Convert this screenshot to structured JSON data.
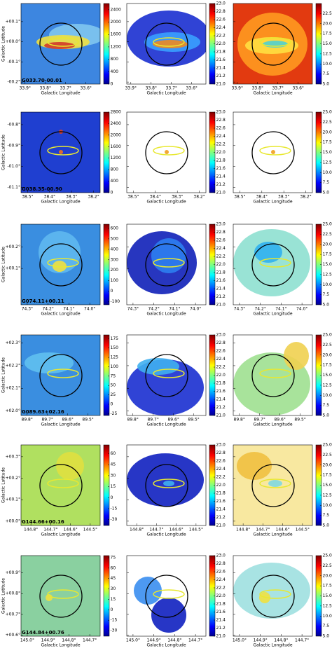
{
  "xlabel": "Galactic Longitude",
  "ylabel": "Galactic Latitude",
  "rows": [
    {
      "label": "G033.70-00.01",
      "xlim": [
        33.92,
        33.53
      ],
      "ylim": [
        -0.21,
        0.19
      ],
      "xticks": [
        {
          "value": 33.9,
          "label": "33.9°"
        },
        {
          "value": 33.8,
          "label": "33.8°"
        },
        {
          "value": 33.7,
          "label": "33.7°"
        },
        {
          "value": 33.6,
          "label": "33.6°"
        }
      ],
      "yticks": [
        {
          "value": 0.1,
          "label": "+00.1°"
        },
        {
          "value": 0.0,
          "label": "+00.0°"
        },
        {
          "value": -0.1,
          "label": "-00.1°"
        },
        {
          "value": -0.2,
          "label": "-00.2°"
        }
      ],
      "colorbars": [
        {
          "lim": [
            0,
            2600
          ],
          "ticks": [
            0,
            400,
            800,
            1200,
            1600,
            2000,
            2400
          ]
        },
        {
          "lim": [
            21.0,
            23.0
          ],
          "ticks": [
            {
              "value": 21.0,
              "label": "21.0"
            },
            21.2,
            21.4,
            21.6,
            21.8,
            {
              "value": 22.0,
              "label": "22.0"
            },
            22.2,
            22.4,
            22.6,
            22.8,
            {
              "value": 23.0,
              "label": "23.0"
            }
          ]
        },
        {
          "lim": [
            5.0,
            25.0
          ],
          "ticks": [
            {
              "value": 5.0,
              "label": "5.0"
            },
            {
              "value": 7.5,
              "label": "7.5"
            },
            {
              "value": 10.0,
              "label": "10.0"
            },
            {
              "value": 12.5,
              "label": "12.5"
            },
            {
              "value": 15.0,
              "label": "15.0"
            },
            {
              "value": 17.5,
              "label": "17.5"
            },
            {
              "value": 20.0,
              "label": "20.0"
            },
            {
              "value": 22.5,
              "label": "22.5"
            }
          ]
        }
      ]
    },
    {
      "label": "G038.35-00.90",
      "xlim": [
        38.53,
        38.17
      ],
      "ylim": [
        -1.125,
        -0.74
      ],
      "xticks": [
        {
          "value": 38.5,
          "label": "38.5°"
        },
        {
          "value": 38.4,
          "label": "38.4°"
        },
        {
          "value": 38.3,
          "label": "38.3°"
        },
        {
          "value": 38.2,
          "label": "38.2°"
        }
      ],
      "yticks": [
        {
          "value": -0.8,
          "label": "-00.8°"
        },
        {
          "value": -0.9,
          "label": "-00.9°"
        },
        {
          "value": -1.0,
          "label": "-01.0°"
        },
        {
          "value": -1.1,
          "label": "-01.1°"
        }
      ],
      "colorbars": [
        {
          "lim": [
            0,
            2800
          ],
          "ticks": [
            0,
            400,
            800,
            1200,
            1600,
            2000,
            2400,
            2800
          ]
        },
        {
          "lim": [
            21.0,
            23.0
          ],
          "ticks": [
            {
              "value": 21.0,
              "label": "21.0"
            },
            21.2,
            21.4,
            21.6,
            21.8,
            {
              "value": 22.0,
              "label": "22.0"
            },
            22.2,
            22.4,
            22.6,
            22.8,
            {
              "value": 23.0,
              "label": "23.0"
            }
          ]
        },
        {
          "lim": [
            5.0,
            25.0
          ],
          "ticks": [
            {
              "value": 5.0,
              "label": "5.0"
            },
            {
              "value": 7.5,
              "label": "7.5"
            },
            {
              "value": 10.0,
              "label": "10.0"
            },
            {
              "value": 12.5,
              "label": "12.5"
            },
            {
              "value": 15.0,
              "label": "15.0"
            },
            {
              "value": 17.5,
              "label": "17.5"
            },
            {
              "value": 20.0,
              "label": "20.0"
            },
            {
              "value": 22.5,
              "label": "22.5"
            },
            {
              "value": 25.0,
              "label": "25.0"
            }
          ]
        }
      ]
    },
    {
      "label": "G074.11+00.11",
      "xlim": [
        74.33,
        73.95
      ],
      "ylim": [
        -0.07,
        0.307
      ],
      "xticks": [
        {
          "value": 74.3,
          "label": "74.3°"
        },
        {
          "value": 74.2,
          "label": "74.2°"
        },
        {
          "value": 74.1,
          "label": "74.1°"
        },
        {
          "value": 74.0,
          "label": "74.0°"
        }
      ],
      "yticks": [
        {
          "value": 0.2,
          "label": "+00.2°"
        },
        {
          "value": 0.1,
          "label": "+00.1°"
        }
      ],
      "colorbars": [
        {
          "lim": [
            -130,
            640
          ],
          "ticks": [
            -100,
            0,
            100,
            200,
            300,
            400,
            500,
            600
          ]
        },
        {
          "lim": [
            21.0,
            23.0
          ],
          "ticks": [
            {
              "value": 21.0,
              "label": "21.0"
            },
            21.2,
            21.4,
            21.6,
            21.8,
            {
              "value": 22.0,
              "label": "22.0"
            },
            22.2,
            22.4,
            22.6,
            22.8,
            {
              "value": 23.0,
              "label": "23.0"
            }
          ]
        },
        {
          "lim": [
            5.0,
            25.0
          ],
          "ticks": [
            {
              "value": 5.0,
              "label": "5.0"
            },
            {
              "value": 7.5,
              "label": "7.5"
            },
            {
              "value": 10.0,
              "label": "10.0"
            },
            {
              "value": 12.5,
              "label": "12.5"
            },
            {
              "value": 15.0,
              "label": "15.0"
            },
            {
              "value": 17.5,
              "label": "17.5"
            },
            {
              "value": 20.0,
              "label": "20.0"
            },
            {
              "value": 22.5,
              "label": "22.5"
            },
            {
              "value": 25.0,
              "label": "25.0"
            }
          ]
        }
      ]
    },
    {
      "label": "G089.63+02.16",
      "xlim": [
        89.83,
        89.44
      ],
      "ylim": [
        1.98,
        2.336
      ],
      "xticks": [
        {
          "value": 89.8,
          "label": "89.8°"
        },
        {
          "value": 89.7,
          "label": "89.7°"
        },
        {
          "value": 89.6,
          "label": "89.6°"
        },
        {
          "value": 89.5,
          "label": "89.5°"
        }
      ],
      "yticks": [
        {
          "value": 2.3,
          "label": "+02.3°"
        },
        {
          "value": 2.2,
          "label": "+02.2°"
        },
        {
          "value": 2.1,
          "label": "+02.1°"
        },
        {
          "value": 2.0,
          "label": "+02.0°"
        }
      ],
      "colorbars": [
        {
          "lim": [
            -30,
            185
          ],
          "ticks": [
            -25,
            0,
            25,
            50,
            75,
            100,
            125,
            150,
            175
          ]
        },
        {
          "lim": [
            21.0,
            23.0
          ],
          "ticks": [
            {
              "value": 21.0,
              "label": "21.0"
            },
            21.2,
            21.4,
            21.6,
            21.8,
            {
              "value": 22.0,
              "label": "22.0"
            },
            22.2,
            22.4,
            22.6,
            22.8,
            {
              "value": 23.0,
              "label": "23.0"
            }
          ]
        },
        {
          "lim": [
            5.0,
            25.0
          ],
          "ticks": [
            {
              "value": 5.0,
              "label": "5.0"
            },
            {
              "value": 7.5,
              "label": "7.5"
            },
            {
              "value": 10.0,
              "label": "10.0"
            },
            {
              "value": 12.5,
              "label": "12.5"
            },
            {
              "value": 15.0,
              "label": "15.0"
            },
            {
              "value": 17.5,
              "label": "17.5"
            },
            {
              "value": 20.0,
              "label": "20.0"
            },
            {
              "value": 22.5,
              "label": "22.5"
            },
            {
              "value": 25.0,
              "label": "25.0"
            }
          ]
        }
      ]
    },
    {
      "label": "G144.66+00.16",
      "xlim": [
        144.85,
        144.45
      ],
      "ylim": [
        -0.02,
        0.355
      ],
      "xticks": [
        {
          "value": 144.8,
          "label": "144.8°"
        },
        {
          "value": 144.7,
          "label": "144.7°"
        },
        {
          "value": 144.6,
          "label": "144.6°"
        },
        {
          "value": 144.5,
          "label": "144.5°"
        }
      ],
      "yticks": [
        {
          "value": 0.3,
          "label": "+00.3°"
        },
        {
          "value": 0.2,
          "label": "+00.2°"
        },
        {
          "value": 0.1,
          "label": "+00.1°"
        },
        {
          "value": 0.0,
          "label": "+00.0°"
        }
      ],
      "colorbars": [
        {
          "lim": [
            -38,
            72
          ],
          "ticks": [
            -30,
            -15,
            0,
            15,
            30,
            45,
            60
          ]
        },
        {
          "lim": [
            21.0,
            23.0
          ],
          "ticks": [
            {
              "value": 21.0,
              "label": "21.0"
            },
            21.2,
            21.4,
            21.6,
            21.8,
            {
              "value": 22.0,
              "label": "22.0"
            },
            22.2,
            22.4,
            22.6,
            22.8,
            {
              "value": 23.0,
              "label": "23.0"
            }
          ]
        },
        {
          "lim": [
            5.0,
            25.0
          ],
          "ticks": [
            {
              "value": 5.0,
              "label": "5.0"
            },
            {
              "value": 7.5,
              "label": "7.5"
            },
            {
              "value": 10.0,
              "label": "10.0"
            },
            {
              "value": 12.5,
              "label": "12.5"
            },
            {
              "value": 15.0,
              "label": "15.0"
            },
            {
              "value": 17.5,
              "label": "17.5"
            },
            {
              "value": 20.0,
              "label": "20.0"
            },
            {
              "value": 22.5,
              "label": "22.5"
            },
            {
              "value": 25.0,
              "label": "25.0"
            }
          ]
        }
      ]
    },
    {
      "label": "G144.84+00.76",
      "xlim": [
        145.03,
        144.65
      ],
      "ylim": [
        0.595,
        0.983
      ],
      "xticks": [
        {
          "value": 145.0,
          "label": "145.0°"
        },
        {
          "value": 144.9,
          "label": "144.9°"
        },
        {
          "value": 144.8,
          "label": "144.8°"
        },
        {
          "value": 144.7,
          "label": "144.7°"
        }
      ],
      "yticks": [
        {
          "value": 0.9,
          "label": "+00.9°"
        },
        {
          "value": 0.8,
          "label": "+00.8°"
        },
        {
          "value": 0.7,
          "label": "+00.7°"
        },
        {
          "value": 0.6,
          "label": "+00.6°"
        }
      ],
      "colorbars": [
        {
          "lim": [
            -38,
            78
          ],
          "ticks": [
            -30,
            -15,
            0,
            15,
            30,
            45,
            60,
            75
          ]
        },
        {
          "lim": [
            21.0,
            23.0
          ],
          "ticks": [
            {
              "value": 21.0,
              "label": "21.0"
            },
            21.2,
            21.4,
            21.6,
            21.8,
            {
              "value": 22.0,
              "label": "22.0"
            },
            22.2,
            22.4,
            22.6,
            22.8,
            {
              "value": 23.0,
              "label": "23.0"
            }
          ]
        },
        {
          "lim": [
            5.0,
            25.0
          ],
          "ticks": [
            {
              "value": 5.0,
              "label": "5.0"
            },
            {
              "value": 7.5,
              "label": "7.5"
            },
            {
              "value": 10.0,
              "label": "10.0"
            },
            {
              "value": 12.5,
              "label": "12.5"
            },
            {
              "value": 15.0,
              "label": "15.0"
            },
            {
              "value": 17.5,
              "label": "17.5"
            },
            {
              "value": 20.0,
              "label": "20.0"
            },
            {
              "value": 22.5,
              "label": "22.5"
            },
            {
              "value": 25.0,
              "label": "25.0"
            }
          ]
        }
      ]
    }
  ]
}
